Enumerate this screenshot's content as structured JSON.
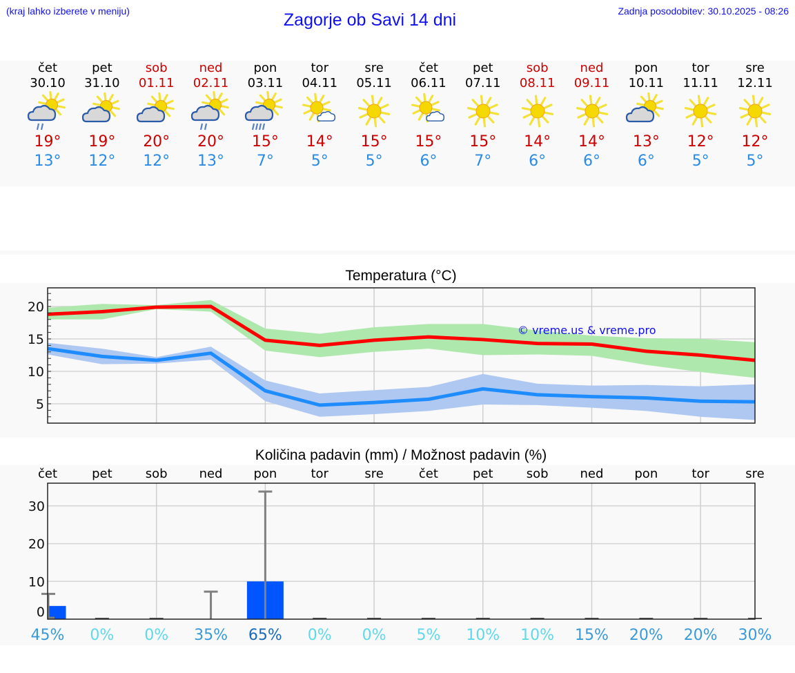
{
  "header": {
    "menu_hint": "(kraj lahko izberete v meniju)",
    "title": "Zagorje ob Savi 14 dni",
    "last_update": "Zadnja posodobitev: 30.10.2025 - 08:26"
  },
  "days": [
    {
      "name": "čet",
      "date": "30.10",
      "weekend": false,
      "icon": "partly-cloudy-light-rain-icon",
      "max": "19°",
      "min": "13°"
    },
    {
      "name": "pet",
      "date": "31.10",
      "weekend": false,
      "icon": "partly-cloudy-icon",
      "max": "19°",
      "min": "12°"
    },
    {
      "name": "sob",
      "date": "01.11",
      "weekend": true,
      "icon": "partly-cloudy-icon",
      "max": "20°",
      "min": "12°"
    },
    {
      "name": "ned",
      "date": "02.11",
      "weekend": true,
      "icon": "partly-cloudy-light-rain-icon",
      "max": "20°",
      "min": "13°"
    },
    {
      "name": "pon",
      "date": "03.11",
      "weekend": false,
      "icon": "partly-cloudy-rain-icon",
      "max": "15°",
      "min": "7°"
    },
    {
      "name": "tor",
      "date": "04.11",
      "weekend": false,
      "icon": "mostly-sunny-icon",
      "max": "14°",
      "min": "5°"
    },
    {
      "name": "sre",
      "date": "05.11",
      "weekend": false,
      "icon": "sunny-icon",
      "max": "15°",
      "min": "5°"
    },
    {
      "name": "čet",
      "date": "06.11",
      "weekend": false,
      "icon": "mostly-sunny-icon",
      "max": "15°",
      "min": "6°"
    },
    {
      "name": "pet",
      "date": "07.11",
      "weekend": false,
      "icon": "sunny-icon",
      "max": "15°",
      "min": "7°"
    },
    {
      "name": "sob",
      "date": "08.11",
      "weekend": true,
      "icon": "sunny-icon",
      "max": "14°",
      "min": "6°"
    },
    {
      "name": "ned",
      "date": "09.11",
      "weekend": true,
      "icon": "sunny-icon",
      "max": "14°",
      "min": "6°"
    },
    {
      "name": "pon",
      "date": "10.11",
      "weekend": false,
      "icon": "partly-cloudy-icon",
      "max": "13°",
      "min": "6°"
    },
    {
      "name": "tor",
      "date": "11.11",
      "weekend": false,
      "icon": "sunny-icon",
      "max": "12°",
      "min": "5°"
    },
    {
      "name": "sre",
      "date": "12.11",
      "weekend": false,
      "icon": "sunny-icon",
      "max": "12°",
      "min": "5°"
    }
  ],
  "colors": {
    "link": "#1010ee",
    "weekend": "#cc0000",
    "max_line": "#ff0000",
    "max_band": "#aee8ac",
    "min_line": "#1e8cff",
    "min_band": "#aec8f2",
    "precip_bar": "#0055ff",
    "whisker": "#808080"
  },
  "chart_data": [
    {
      "type": "line",
      "title": "Temperatura (°C)",
      "watermark": "© vreme.us & vreme.pro",
      "xlabel": "",
      "ylabel": "",
      "ylim": [
        2,
        22.9
      ],
      "yticks": [
        5,
        10,
        15,
        20
      ],
      "grid": true,
      "categories": [
        "30.10",
        "31.10",
        "01.11",
        "02.11",
        "03.11",
        "04.11",
        "05.11",
        "06.11",
        "07.11",
        "08.11",
        "09.11",
        "10.11",
        "11.11",
        "12.11"
      ],
      "series": [
        {
          "name": "max",
          "values": [
            18.8,
            19.2,
            19.9,
            20.0,
            14.8,
            14.0,
            14.8,
            15.3,
            14.9,
            14.3,
            14.2,
            13.1,
            12.5,
            11.7
          ],
          "band_low": [
            18.0,
            18.0,
            19.6,
            19.2,
            13.2,
            12.2,
            13.0,
            13.5,
            12.5,
            12.6,
            12.4,
            11.0,
            9.9,
            9.0
          ],
          "band_high": [
            19.8,
            20.4,
            20.2,
            21.0,
            16.6,
            15.8,
            16.8,
            17.3,
            17.3,
            16.3,
            15.5,
            15.1,
            15.0,
            14.5
          ]
        },
        {
          "name": "min",
          "values": [
            13.5,
            12.3,
            11.7,
            12.8,
            7.0,
            4.8,
            5.2,
            5.7,
            7.3,
            6.4,
            6.1,
            5.9,
            5.4,
            5.3
          ],
          "band_low": [
            12.6,
            11.1,
            11.2,
            11.8,
            5.4,
            3.0,
            3.4,
            3.9,
            4.9,
            4.8,
            4.4,
            3.9,
            3.0,
            2.5
          ],
          "band_high": [
            14.4,
            13.5,
            12.2,
            13.8,
            8.6,
            6.6,
            7.1,
            7.6,
            9.6,
            8.1,
            7.8,
            7.9,
            7.7,
            8.0
          ]
        }
      ]
    },
    {
      "type": "bar",
      "title": "Količina padavin (mm) / Možnost padavin (%)",
      "xlabel": "",
      "ylabel": "",
      "ylim": [
        0,
        36
      ],
      "yticks": [
        0,
        10,
        20,
        30
      ],
      "grid": true,
      "categories": [
        "čet",
        "pet",
        "sob",
        "ned",
        "pon",
        "tor",
        "sre",
        "čet",
        "pet",
        "sob",
        "ned",
        "pon",
        "tor",
        "sre"
      ],
      "series": [
        {
          "name": "precipitation_mm",
          "values": [
            3.5,
            0,
            0,
            0,
            10.0,
            0,
            0,
            0,
            0,
            0,
            0,
            0,
            0,
            0
          ]
        },
        {
          "name": "precipitation_max_mm",
          "values": [
            6.7,
            0,
            0,
            7.3,
            33.8,
            0,
            0,
            0,
            0,
            0,
            0,
            0,
            0,
            0
          ]
        }
      ],
      "probability_labels": [
        "45%",
        "0%",
        "0%",
        "35%",
        "65%",
        "0%",
        "0%",
        "5%",
        "10%",
        "10%",
        "15%",
        "20%",
        "20%",
        "30%"
      ],
      "probability_values": [
        45,
        0,
        0,
        35,
        65,
        0,
        0,
        5,
        10,
        10,
        15,
        20,
        20,
        30
      ]
    }
  ]
}
